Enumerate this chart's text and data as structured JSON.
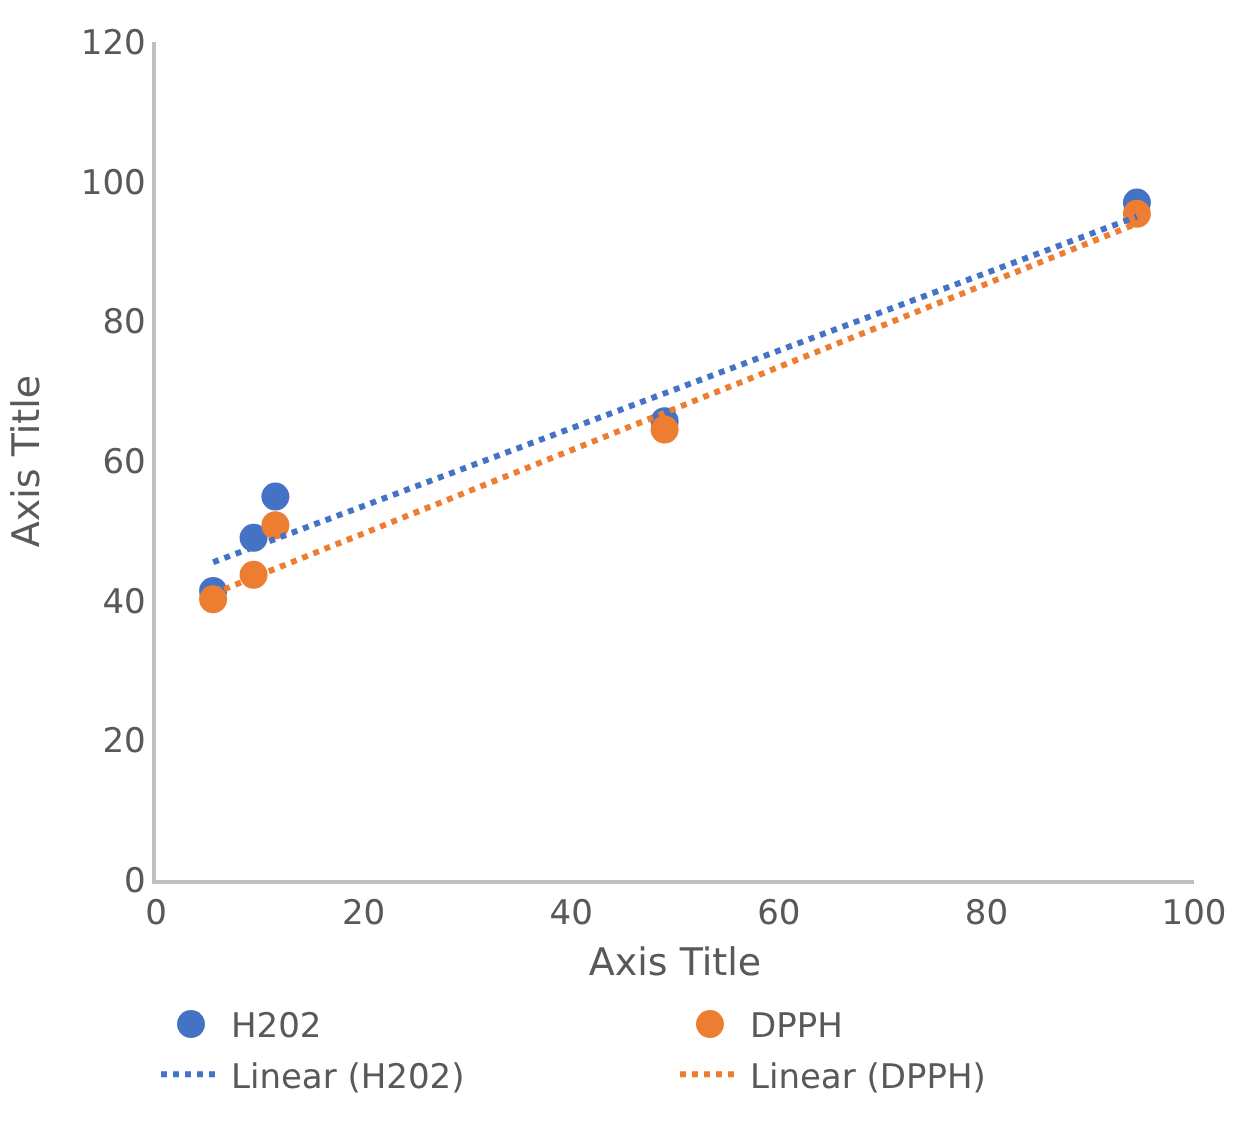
{
  "chart_data": {
    "type": "scatter",
    "xlabel": "Axis Title",
    "ylabel": "Axis Title",
    "xlim": [
      0,
      100
    ],
    "xticks": [
      0,
      20,
      40,
      60,
      80,
      100
    ],
    "ylim": [
      0,
      120
    ],
    "yticks": [
      0,
      20,
      40,
      60,
      80,
      100,
      120
    ],
    "legend": "bottom",
    "marker": "circle",
    "series": [
      {
        "name": "H202",
        "color": "#4472c4",
        "x": [
          5.5,
          9.4,
          11.5,
          49,
          94.5
        ],
        "values": [
          41.4,
          49,
          54.9,
          65.7,
          97
        ]
      },
      {
        "name": "DPPH",
        "color": "#ed7d31",
        "x": [
          5.5,
          9.4,
          11.5,
          49,
          94.5
        ],
        "values": [
          40.2,
          43.7,
          50.8,
          64.5,
          95.4
        ]
      },
      {
        "name": "Linear (H202)",
        "type": "line",
        "line_style": "dotted",
        "marker": "none",
        "color": "#4472c4",
        "x": [
          5.5,
          94.5
        ],
        "values": [
          45.5,
          95
        ]
      },
      {
        "name": "Linear (DPPH)",
        "type": "line",
        "line_style": "dotted",
        "marker": "none",
        "color": "#ed7d31",
        "x": [
          5.5,
          94.5
        ],
        "values": [
          41,
          94
        ]
      }
    ]
  }
}
